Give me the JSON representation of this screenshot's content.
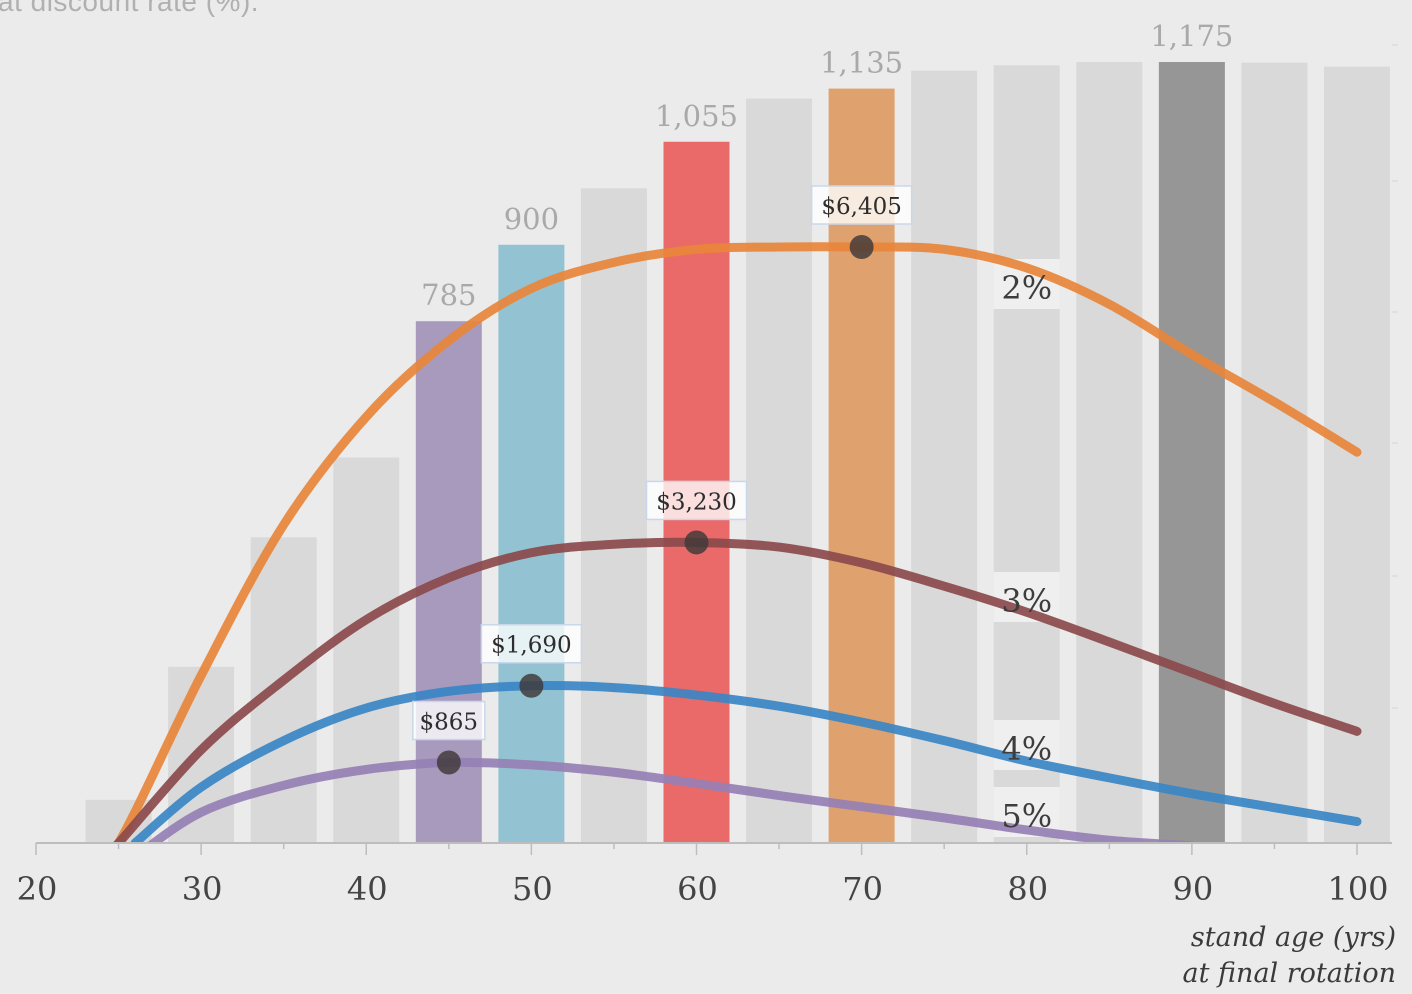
{
  "subtitle": "at discount rate (%).",
  "colors": {
    "background": "#ebebeb",
    "bar_default": "#d9d9d9",
    "bar_label": "#a9a9a9",
    "axis_text": "#444444"
  },
  "chart_data": {
    "type": "bar",
    "xlabel": [
      "stand age (yrs)",
      "at final rotation"
    ],
    "xlim": [
      20,
      102
    ],
    "x_ticks": [
      "20",
      "30",
      "40",
      "50",
      "60",
      "70",
      "80",
      "90",
      "100"
    ],
    "bars": {
      "ylim": [
        0,
        1200
      ],
      "x": [
        25,
        30,
        35,
        40,
        45,
        50,
        55,
        60,
        65,
        70,
        75,
        80,
        85,
        90,
        95,
        100
      ],
      "values": [
        65,
        265,
        460,
        580,
        785,
        900,
        985,
        1055,
        1120,
        1135,
        1162,
        1170,
        1175,
        1175,
        1174,
        1168
      ],
      "labels": [
        "",
        "",
        "",
        "",
        "785",
        "900",
        "",
        "1,055",
        "",
        "1,135",
        "",
        "",
        "",
        "1,175",
        "",
        ""
      ],
      "colors": [
        "#d9d9d9",
        "#d9d9d9",
        "#d9d9d9",
        "#d9d9d9",
        "#a89abd",
        "#93c3d2",
        "#d9d9d9",
        "#ea6a69",
        "#d9d9d9",
        "#dfa26f",
        "#d9d9d9",
        "#d9d9d9",
        "#d9d9d9",
        "#969696",
        "#d9d9d9",
        "#d9d9d9"
      ]
    },
    "series": [
      {
        "name": "2%",
        "color": "#e8853a",
        "x": [
          23,
          25,
          30,
          35,
          40,
          45,
          50,
          55,
          60,
          65,
          70,
          75,
          80,
          85,
          90,
          95,
          100
        ],
        "values": [
          -300,
          0,
          1800,
          3420,
          4580,
          5400,
          5960,
          6240,
          6380,
          6405,
          6405,
          6380,
          6180,
          5790,
          5250,
          4740,
          4200
        ],
        "peak": {
          "x": 70,
          "value": 6405,
          "label": "$6,405"
        }
      },
      {
        "name": "3%",
        "color": "#8b4a4c",
        "x": [
          24,
          25,
          30,
          35,
          40,
          45,
          50,
          55,
          60,
          65,
          70,
          75,
          80,
          85,
          90,
          95,
          100
        ],
        "values": [
          -150,
          0,
          1000,
          1750,
          2400,
          2850,
          3120,
          3210,
          3230,
          3180,
          3010,
          2760,
          2480,
          2160,
          1830,
          1500,
          1200
        ],
        "peak": {
          "x": 60,
          "value": 3230,
          "label": "$3,230"
        }
      },
      {
        "name": "4%",
        "color": "#3a86c6",
        "x": [
          26,
          30,
          35,
          40,
          45,
          50,
          55,
          60,
          65,
          70,
          75,
          80,
          85,
          90,
          95,
          100
        ],
        "values": [
          0,
          600,
          1100,
          1450,
          1630,
          1690,
          1670,
          1590,
          1470,
          1300,
          1100,
          880,
          700,
          530,
          380,
          230
        ],
        "peak": {
          "x": 50,
          "value": 1690,
          "label": "$1,690"
        }
      },
      {
        "name": "5%",
        "color": "#9680b4",
        "x": [
          26,
          30,
          35,
          40,
          45,
          50,
          55,
          60,
          65,
          70,
          75,
          80,
          85,
          90
        ],
        "values": [
          -150,
          330,
          620,
          790,
          865,
          840,
          760,
          640,
          510,
          390,
          270,
          140,
          30,
          -30
        ],
        "peak": {
          "x": 45,
          "value": 865,
          "label": "$865"
        }
      }
    ],
    "line_ylim": [
      0,
      7090
    ],
    "series_label_x": 80
  }
}
